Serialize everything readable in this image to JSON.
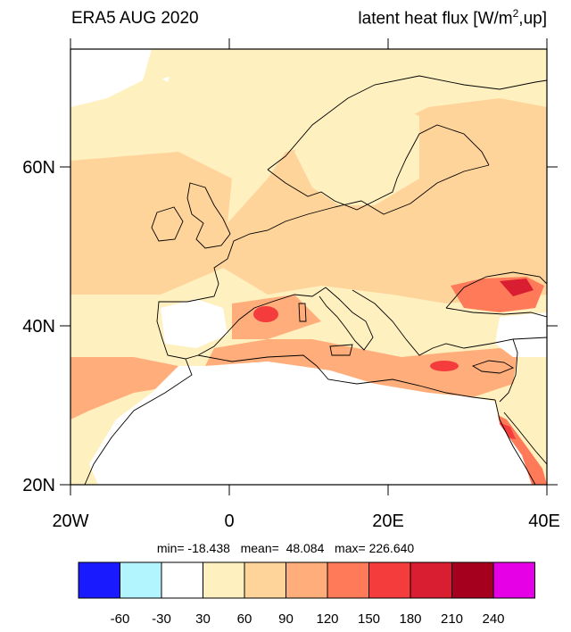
{
  "header": {
    "title_left": "ERA5 AUG 2020",
    "title_right_prefix": "latent heat flux [W/m",
    "title_right_sup": "2",
    "title_right_suffix": ",up]"
  },
  "map": {
    "projection": "cylindrical equidistant",
    "lon_range": [
      -20,
      40
    ],
    "lat_range": [
      20,
      75
    ],
    "lon_ticks": [
      {
        "value": -20,
        "label": "20W"
      },
      {
        "value": 0,
        "label": "0"
      },
      {
        "value": 20,
        "label": "20E"
      },
      {
        "value": 40,
        "label": "40E"
      }
    ],
    "lat_ticks": [
      {
        "value": 20,
        "label": "20N"
      },
      {
        "value": 40,
        "label": "40N"
      },
      {
        "value": 60,
        "label": "60N"
      }
    ],
    "coastline_color": "#000000"
  },
  "stats": {
    "text": "min= -18.438   mean=  48.084   max= 226.640"
  },
  "colorbar": {
    "levels": [
      "-60",
      "-30",
      "30",
      "60",
      "90",
      "120",
      "150",
      "180",
      "210",
      "240"
    ],
    "colors": [
      "#1a1aff",
      "#b3f5ff",
      "#ffffff",
      "#fff0c0",
      "#ffd49a",
      "#ffad7a",
      "#ff7a58",
      "#f53c3c",
      "#d91e32",
      "#a5001e",
      "#e600e6"
    ]
  }
}
